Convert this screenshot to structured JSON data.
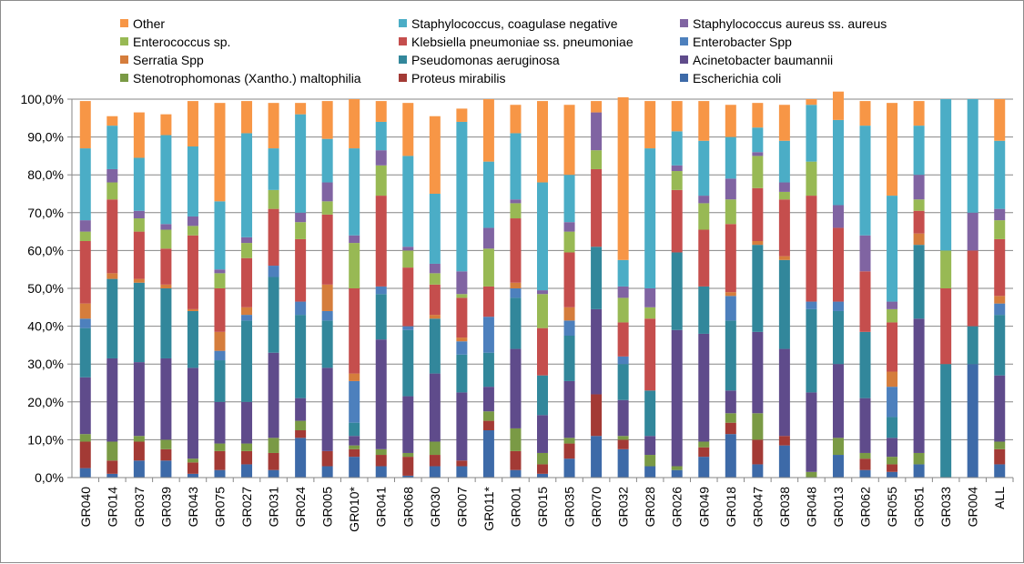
{
  "chart_data": {
    "type": "bar",
    "stacked": true,
    "title": "",
    "xlabel": "",
    "ylabel": "",
    "ylim": [
      0,
      100
    ],
    "y_tick_labels": [
      "0,0%",
      "10,0%",
      "20,0%",
      "30,0%",
      "40,0%",
      "50,0%",
      "60,0%",
      "70,0%",
      "80,0%",
      "90,0%",
      "100,0%"
    ],
    "grid": "horizontal",
    "legend_position": "top",
    "categories": [
      "GR040",
      "GR014",
      "GR037",
      "GR039",
      "GR043",
      "GR075",
      "GR027",
      "GR031",
      "GR024",
      "GR005",
      "GR010*",
      "GR041",
      "GR068",
      "GR030",
      "GR007",
      "GR011*",
      "GR001",
      "GR015",
      "GR035",
      "GR070",
      "GR032",
      "GR028",
      "GR026",
      "GR049",
      "GR018",
      "GR047",
      "GR038",
      "GR048",
      "GR013",
      "GR062",
      "GR055",
      "GR051",
      "GR033",
      "GR004",
      "ALL"
    ],
    "series": [
      {
        "name": "Escherichia coli",
        "color": "#3d6aa8",
        "values": [
          2.5,
          1,
          4.5,
          4.5,
          1,
          2,
          3.5,
          2,
          10.5,
          3,
          5.5,
          3,
          0.5,
          3,
          3,
          12.5,
          2,
          1,
          5,
          11,
          7.5,
          3,
          2,
          5.5,
          11.5,
          3.5,
          8.5,
          0,
          6,
          2,
          1.5,
          3.5,
          0,
          30,
          3.5
        ]
      },
      {
        "name": "Proteus mirabilis",
        "color": "#a33a35",
        "values": [
          7,
          3.5,
          5,
          3,
          3,
          5,
          3.5,
          4.5,
          2,
          4,
          2,
          3,
          5,
          3,
          1.5,
          2.5,
          5,
          2.5,
          4,
          11,
          2.5,
          0,
          0,
          2.5,
          3,
          6.5,
          2.5,
          0,
          0,
          3,
          2,
          0,
          0,
          0,
          4
        ]
      },
      {
        "name": "Stenotrophomonas (Xantho.) maltophilia",
        "color": "#7a9a45",
        "values": [
          2,
          5,
          1.5,
          2.5,
          1,
          2,
          2,
          4,
          2.5,
          0,
          1,
          1.5,
          1,
          3.5,
          0,
          2.5,
          6,
          3,
          1.5,
          0,
          1,
          3,
          1,
          1.5,
          2.5,
          7,
          0,
          1.5,
          4.5,
          1.5,
          2,
          3,
          0,
          0,
          2
        ]
      },
      {
        "name": "Acinetobacter baumannii",
        "color": "#5f4b8b",
        "values": [
          15,
          22,
          19.5,
          21.5,
          24,
          11,
          11,
          22.5,
          6,
          22,
          2.5,
          29,
          15,
          18,
          18,
          6.5,
          21,
          10,
          15,
          22.5,
          9.5,
          5,
          36,
          28.5,
          6,
          21.5,
          23,
          21,
          19.5,
          14.5,
          5,
          35.5,
          0,
          0,
          17.5
        ]
      },
      {
        "name": "Pseudomonas aeruginosa",
        "color": "#32879b",
        "values": [
          13,
          21,
          21,
          18.5,
          15,
          11,
          21.5,
          20,
          22,
          12.5,
          3.5,
          12,
          17.5,
          14.5,
          10,
          9,
          13.5,
          10.5,
          12,
          16.5,
          9.5,
          12,
          20.5,
          12.5,
          18.5,
          23,
          23.5,
          22,
          14,
          17.5,
          5.5,
          19.5,
          30,
          10,
          16
        ]
      },
      {
        "name": "Enterobacter Spp",
        "color": "#4d80bd",
        "values": [
          2.5,
          0,
          0,
          0,
          0,
          2.5,
          1.5,
          3,
          3.5,
          2.5,
          11,
          2,
          1,
          0,
          3.5,
          9.5,
          2.5,
          0,
          4,
          0,
          2,
          0,
          0,
          0,
          6.5,
          0,
          0,
          2,
          2.5,
          0,
          8,
          0,
          0,
          0,
          3
        ]
      },
      {
        "name": "Serratia Spp",
        "color": "#d57d3c",
        "values": [
          4,
          1.5,
          1,
          1,
          0.5,
          5,
          2,
          0,
          0,
          7,
          2,
          0,
          0,
          1,
          1,
          0,
          1.5,
          0,
          3.5,
          0,
          0,
          0,
          0,
          0,
          1,
          1,
          1,
          0,
          0,
          0,
          4,
          3,
          0,
          0,
          2
        ]
      },
      {
        "name": "Klebsiella pneumoniae ss. pneumoniae",
        "color": "#c54e4d",
        "values": [
          16.5,
          19.5,
          12.5,
          9.5,
          19.5,
          11.5,
          13,
          15,
          16.5,
          18.5,
          22.5,
          24,
          15.5,
          8,
          10.5,
          8,
          17,
          12.5,
          14.5,
          20.5,
          9,
          19,
          16.5,
          15,
          18,
          14,
          15,
          28,
          19.5,
          16,
          13,
          6,
          20,
          20,
          15
        ]
      },
      {
        "name": "Enterococcus sp.",
        "color": "#98b954",
        "values": [
          2.5,
          4.5,
          3.5,
          5,
          2.5,
          4,
          4,
          5,
          4.5,
          3.5,
          12,
          8,
          4.5,
          3,
          1,
          10,
          4,
          9,
          5.5,
          5,
          6.5,
          3,
          5,
          7,
          6.5,
          8.5,
          2,
          9,
          0,
          0,
          3.5,
          3,
          10,
          0,
          5
        ]
      },
      {
        "name": "Staphylococcus aureus ss. aureus",
        "color": "#8064a2",
        "values": [
          3,
          3.5,
          2,
          1.5,
          2.5,
          1,
          1.5,
          0,
          2.5,
          5,
          2,
          4,
          1,
          2.5,
          6,
          5.5,
          1,
          1,
          2.5,
          10,
          3,
          5,
          1.5,
          2,
          5.5,
          1,
          2.5,
          0,
          6,
          9.5,
          2,
          6.5,
          0,
          10,
          3
        ]
      },
      {
        "name": "Staphylococcus, coagulase negative",
        "color": "#4badc6",
        "values": [
          19,
          11.5,
          14,
          23.5,
          18.5,
          18,
          27.5,
          11,
          26,
          11.5,
          23,
          7.5,
          24,
          18.5,
          39.5,
          17.5,
          17.5,
          28.5,
          12.5,
          0,
          7,
          37,
          9,
          14.5,
          11,
          6.5,
          11,
          15,
          22.5,
          29,
          28,
          13,
          40,
          30,
          18
        ]
      },
      {
        "name": "Other",
        "color": "#f79646",
        "values": [
          12.5,
          2.5,
          12,
          5.5,
          12,
          26,
          8.5,
          12,
          3,
          10,
          13,
          5.5,
          14,
          20.5,
          3.5,
          16.5,
          7.5,
          21.5,
          18.5,
          3,
          43,
          12.5,
          8,
          10.5,
          8.5,
          6.5,
          9.5,
          1.5,
          7.5,
          6.5,
          24.5,
          6.5,
          0,
          0,
          11
        ]
      }
    ]
  },
  "legend": {
    "items": [
      {
        "label": "Other",
        "color": "#f79646"
      },
      {
        "label": "Staphylococcus, coagulase negative",
        "color": "#4badc6"
      },
      {
        "label": "Staphylococcus aureus ss. aureus",
        "color": "#8064a2"
      },
      {
        "label": "Enterococcus sp.",
        "color": "#98b954"
      },
      {
        "label": "Klebsiella pneumoniae ss. pneumoniae",
        "color": "#c54e4d"
      },
      {
        "label": "Enterobacter Spp",
        "color": "#4d80bd"
      },
      {
        "label": "Serratia Spp",
        "color": "#d57d3c"
      },
      {
        "label": "Pseudomonas aeruginosa",
        "color": "#32879b"
      },
      {
        "label": "Acinetobacter baumannii",
        "color": "#5f4b8b"
      },
      {
        "label": "Stenotrophomonas (Xantho.) maltophilia",
        "color": "#7a9a45"
      },
      {
        "label": "Proteus mirabilis",
        "color": "#a33a35"
      },
      {
        "label": "Escherichia coli",
        "color": "#3d6aa8"
      }
    ]
  }
}
